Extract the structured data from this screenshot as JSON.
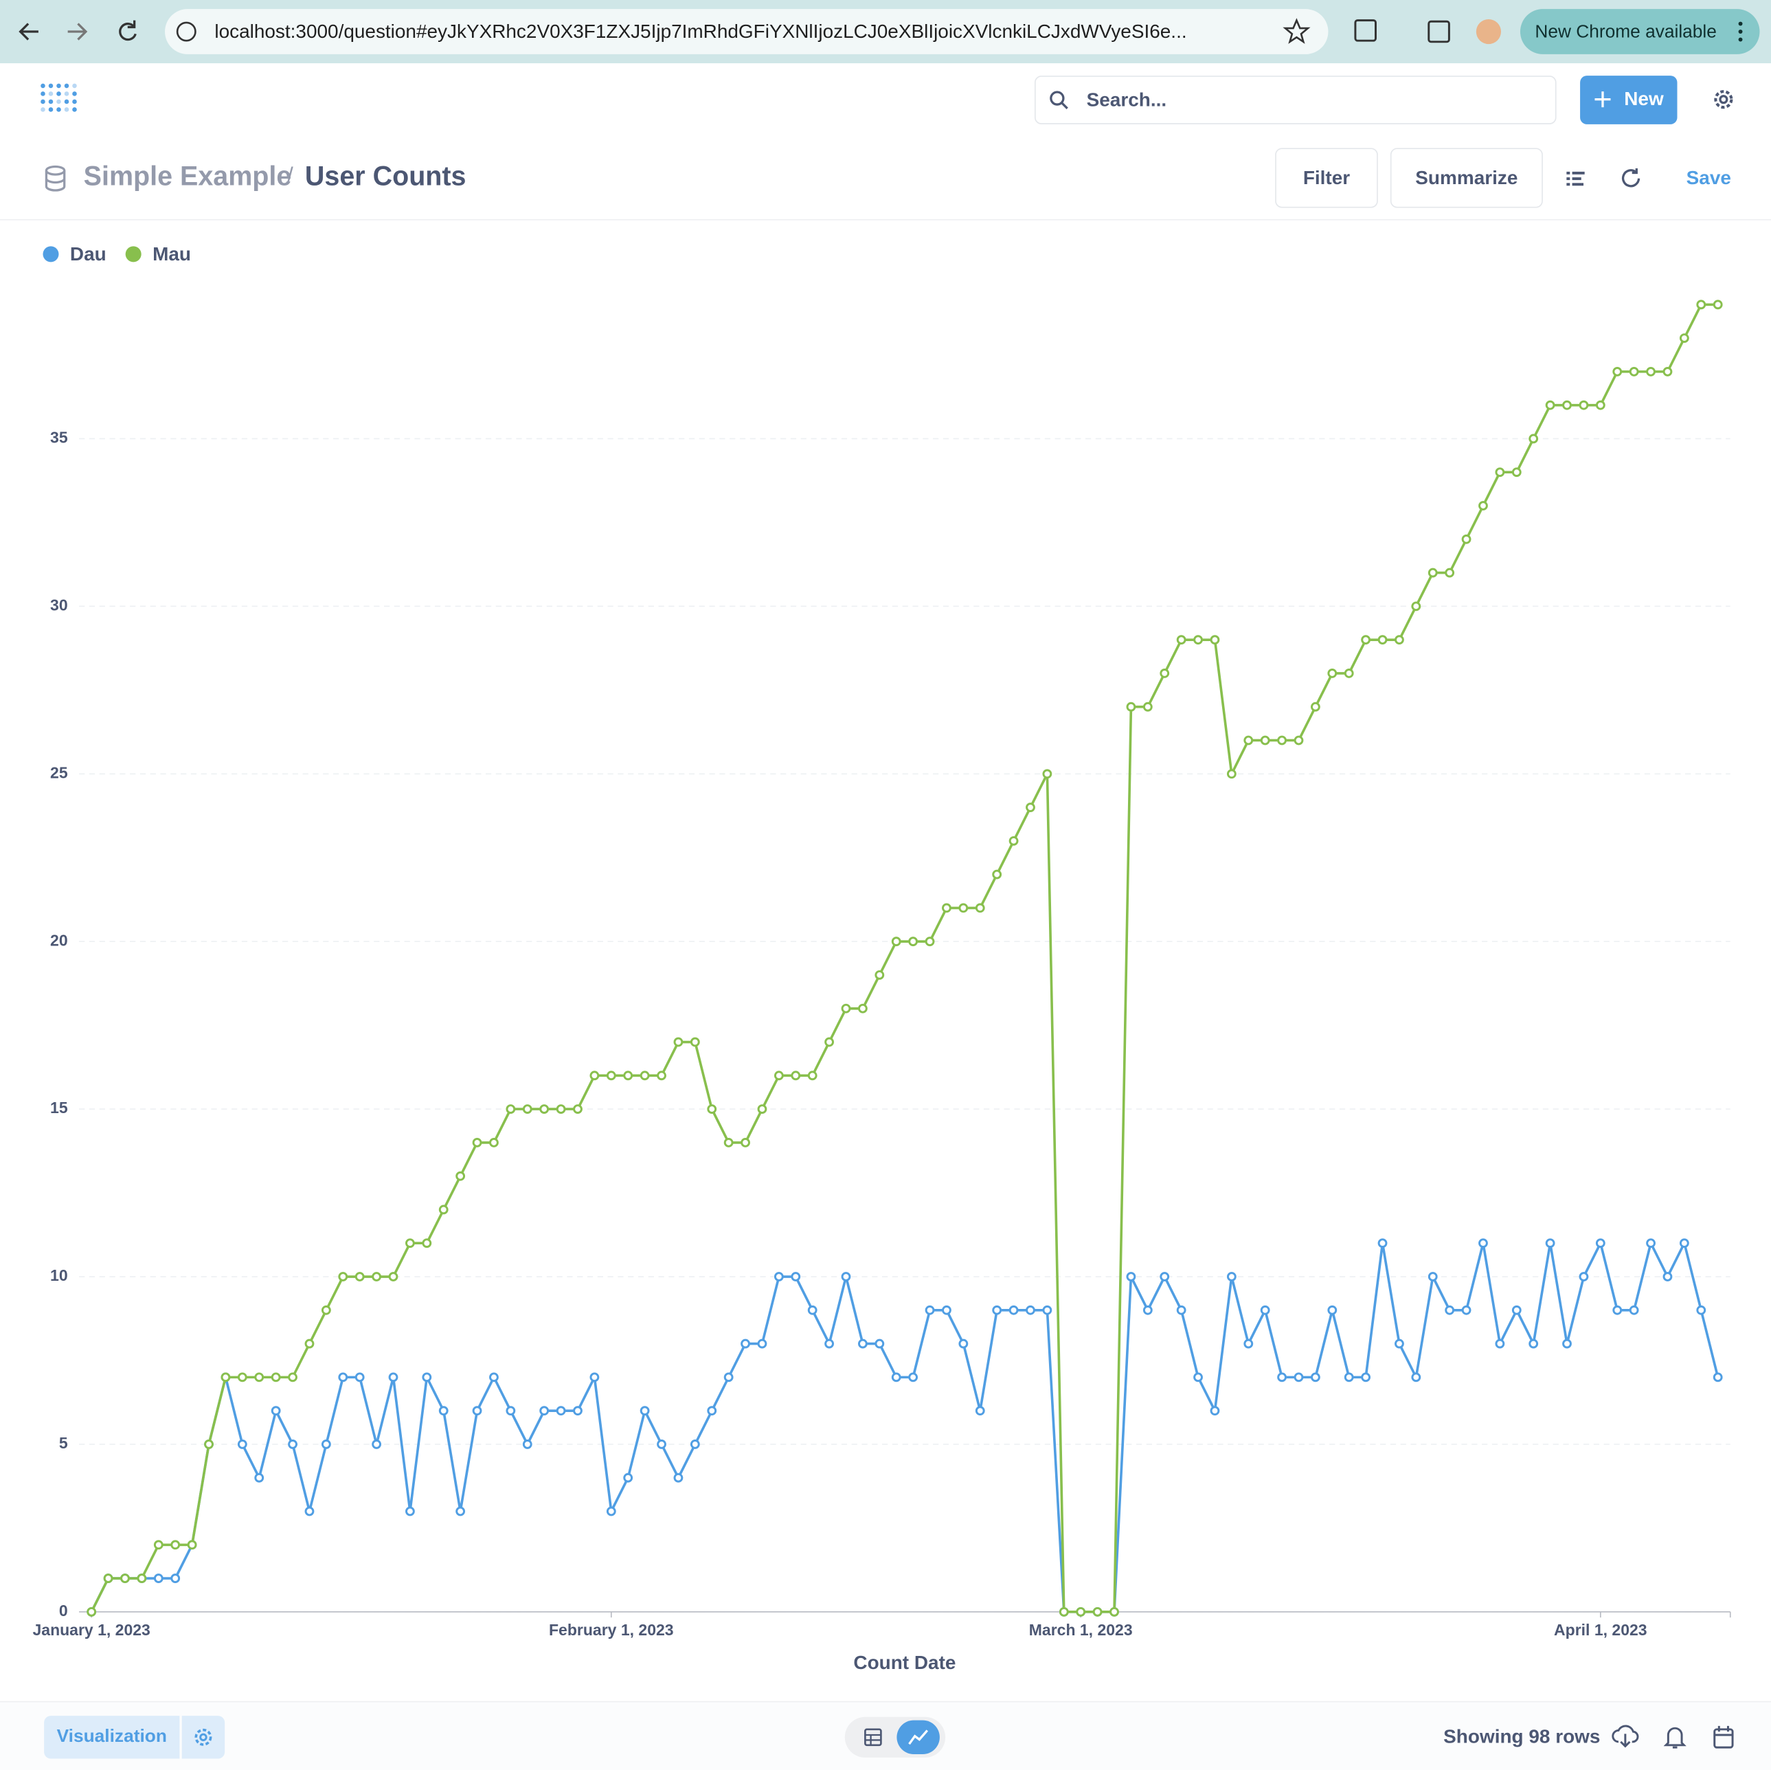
{
  "browser": {
    "url": "localhost:3000/question#eyJkYXRhc2V0X3F1ZXJ5Ijp7ImRhdGFiYXNlIjozLCJ0eXBlIjoicXVlcnkiLCJxdWVyeSI6e...",
    "update": "New Chrome available"
  },
  "header": {
    "search": "Search...",
    "new_button": "New"
  },
  "question": {
    "collection": "Simple Example",
    "separator": "/",
    "title": "User Counts",
    "filter": "Filter",
    "summarize": "Summarize",
    "save": "Save"
  },
  "chart_data": {
    "type": "line",
    "x_label": "Count Date",
    "x": [
      "2023-01-01",
      "2023-01-02",
      "2023-01-03",
      "2023-01-04",
      "2023-01-05",
      "2023-01-06",
      "2023-01-07",
      "2023-01-08",
      "2023-01-09",
      "2023-01-10",
      "2023-01-11",
      "2023-01-12",
      "2023-01-13",
      "2023-01-14",
      "2023-01-15",
      "2023-01-16",
      "2023-01-17",
      "2023-01-18",
      "2023-01-19",
      "2023-01-20",
      "2023-01-21",
      "2023-01-22",
      "2023-01-23",
      "2023-01-24",
      "2023-01-25",
      "2023-01-26",
      "2023-01-27",
      "2023-01-28",
      "2023-01-29",
      "2023-01-30",
      "2023-01-31",
      "2023-02-01",
      "2023-02-02",
      "2023-02-03",
      "2023-02-04",
      "2023-02-05",
      "2023-02-06",
      "2023-02-07",
      "2023-02-08",
      "2023-02-09",
      "2023-02-10",
      "2023-02-11",
      "2023-02-12",
      "2023-02-13",
      "2023-02-14",
      "2023-02-15",
      "2023-02-16",
      "2023-02-17",
      "2023-02-18",
      "2023-02-19",
      "2023-02-20",
      "2023-02-21",
      "2023-02-22",
      "2023-02-23",
      "2023-02-24",
      "2023-02-25",
      "2023-02-26",
      "2023-02-27",
      "2023-02-28",
      "2023-03-01",
      "2023-03-02",
      "2023-03-03",
      "2023-03-04",
      "2023-03-05",
      "2023-03-06",
      "2023-03-07",
      "2023-03-08",
      "2023-03-09",
      "2023-03-10",
      "2023-03-11",
      "2023-03-12",
      "2023-03-13",
      "2023-03-14",
      "2023-03-15",
      "2023-03-16",
      "2023-03-17",
      "2023-03-18",
      "2023-03-19",
      "2023-03-20",
      "2023-03-21",
      "2023-03-22",
      "2023-03-23",
      "2023-03-24",
      "2023-03-25",
      "2023-03-26",
      "2023-03-27",
      "2023-03-28",
      "2023-03-29",
      "2023-03-30",
      "2023-03-31",
      "2023-04-01",
      "2023-04-02",
      "2023-04-03",
      "2023-04-04",
      "2023-04-05",
      "2023-04-06",
      "2023-04-07",
      "2023-04-08"
    ],
    "series": [
      {
        "name": "Dau",
        "color": "#509ee3",
        "values": [
          0,
          1,
          1,
          1,
          1,
          1,
          2,
          5,
          7,
          5,
          4,
          6,
          5,
          3,
          5,
          7,
          7,
          5,
          7,
          3,
          7,
          6,
          3,
          6,
          7,
          6,
          5,
          6,
          6,
          6,
          7,
          3,
          4,
          6,
          5,
          4,
          5,
          6,
          7,
          8,
          8,
          10,
          10,
          9,
          8,
          10,
          8,
          8,
          7,
          7,
          9,
          9,
          8,
          6,
          9,
          9,
          9,
          9,
          0,
          0,
          0,
          0,
          10,
          9,
          10,
          9,
          7,
          6,
          10,
          8,
          9,
          7,
          7,
          7,
          9,
          7,
          7,
          11,
          8,
          7,
          10,
          9,
          9,
          11,
          8,
          9,
          8,
          11,
          8,
          10,
          11,
          9,
          9,
          11,
          10,
          11,
          9,
          7
        ]
      },
      {
        "name": "Mau",
        "color": "#88bf4d",
        "values": [
          0,
          1,
          1,
          1,
          2,
          2,
          2,
          5,
          7,
          7,
          7,
          7,
          7,
          8,
          9,
          10,
          10,
          10,
          10,
          11,
          11,
          12,
          13,
          14,
          14,
          15,
          15,
          15,
          15,
          15,
          16,
          16,
          16,
          16,
          16,
          17,
          17,
          15,
          14,
          14,
          15,
          16,
          16,
          16,
          17,
          18,
          18,
          19,
          20,
          20,
          20,
          21,
          21,
          21,
          22,
          23,
          24,
          25,
          0,
          0,
          0,
          0,
          27,
          27,
          28,
          29,
          29,
          29,
          25,
          26,
          26,
          26,
          26,
          27,
          28,
          28,
          29,
          29,
          29,
          30,
          31,
          31,
          32,
          33,
          34,
          34,
          35,
          36,
          36,
          36,
          36,
          37,
          37,
          37,
          37,
          38,
          39,
          39
        ]
      }
    ],
    "xlim": [
      "2023-01-01",
      "2023-04-08"
    ],
    "xticks": [
      {
        "value": "2023-01-01",
        "label": "January 1, 2023"
      },
      {
        "value": "2023-02-01",
        "label": "February 1, 2023"
      },
      {
        "value": "2023-03-01",
        "label": "March 1, 2023"
      },
      {
        "value": "2023-04-01",
        "label": "April 1, 2023"
      }
    ],
    "ylim": [
      0,
      40
    ],
    "yticks": [
      0,
      5,
      10,
      15,
      20,
      25,
      30,
      35
    ],
    "grid": true,
    "legend": "top-left"
  },
  "footer": {
    "visualization": "Visualization",
    "row_count": "Showing 98 rows"
  }
}
